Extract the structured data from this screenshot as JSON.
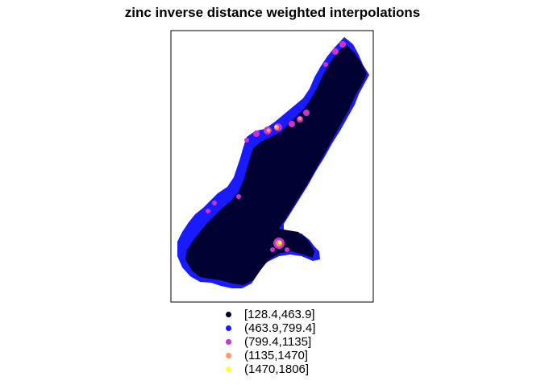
{
  "title": "zinc inverse distance weighted interpolations",
  "legend": {
    "items": [
      {
        "label": "[128.4,463.9]",
        "color": "#000033"
      },
      {
        "label": "(463.9,799.4]",
        "color": "#1a1aff"
      },
      {
        "label": "(799.4,1135]",
        "color": "#cc33cc"
      },
      {
        "label": "(1135,1470]",
        "color": "#ff9966"
      },
      {
        "label": "(1470,1806]",
        "color": "#ffff33"
      }
    ]
  }
}
